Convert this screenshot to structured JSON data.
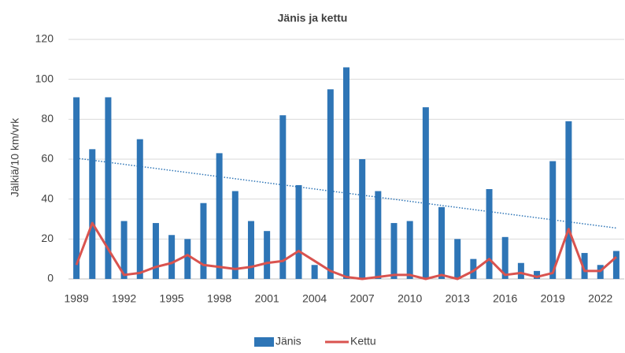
{
  "chart_data": {
    "type": "bar-line",
    "title": "Jänis ja kettu",
    "y_label": "Jälkiä/10 km/vrk",
    "categories": [
      "1989",
      null,
      null,
      "1992",
      null,
      null,
      "1995",
      null,
      null,
      "1998",
      null,
      null,
      "2001",
      null,
      null,
      "2004",
      null,
      null,
      "2007",
      null,
      null,
      "2010",
      null,
      null,
      "2013",
      null,
      null,
      "2016",
      null,
      null,
      "2019",
      null,
      null,
      "2022",
      null
    ],
    "series": [
      {
        "name": "Jänis",
        "type": "bar",
        "color": "#2e75b6",
        "values": [
          91,
          65,
          91,
          29,
          70,
          28,
          22,
          20,
          38,
          63,
          44,
          29,
          24,
          82,
          47,
          7,
          95,
          106,
          60,
          44,
          28,
          29,
          86,
          36,
          20,
          10,
          45,
          21,
          8,
          4,
          59,
          79,
          13,
          7,
          14
        ]
      },
      {
        "name": "Kettu",
        "type": "line",
        "color": "#d9534f",
        "values": [
          7,
          28,
          15,
          2,
          3,
          6,
          8,
          12,
          7,
          6,
          5,
          6,
          8,
          9,
          14,
          9,
          4,
          1,
          0,
          1,
          2,
          2,
          0,
          2,
          0,
          4,
          10,
          2,
          3,
          1,
          3,
          25,
          4,
          4,
          11
        ]
      }
    ],
    "trendline": {
      "values": [
        60.5,
        25.5
      ],
      "color": "#2e75b6"
    },
    "ylim": [
      0,
      120
    ],
    "yticks": [
      0,
      20,
      40,
      60,
      80,
      100,
      120
    ],
    "grid": true,
    "legend": "bottom"
  }
}
